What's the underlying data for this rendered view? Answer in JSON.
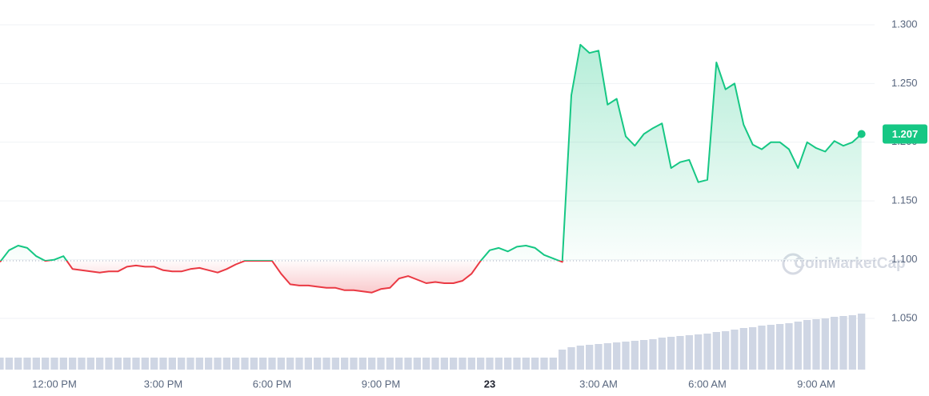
{
  "chart_data": {
    "type": "line",
    "x": [
      10.5,
      10.75,
      11,
      11.25,
      11.5,
      11.75,
      12,
      12.25,
      12.5,
      12.75,
      13,
      13.25,
      13.5,
      13.75,
      14,
      14.25,
      14.5,
      14.75,
      15,
      15.25,
      15.5,
      15.75,
      16,
      16.25,
      16.5,
      16.75,
      17,
      17.25,
      17.5,
      17.75,
      18,
      18.25,
      18.5,
      18.75,
      19,
      19.25,
      19.5,
      19.75,
      20,
      20.25,
      20.5,
      20.75,
      21,
      21.25,
      21.5,
      21.75,
      22,
      22.25,
      22.5,
      22.75,
      23,
      23.25,
      23.5,
      23.75,
      24,
      24.25,
      24.5,
      24.75,
      25,
      25.25,
      25.5,
      25.75,
      26,
      26.25,
      26.5,
      26.75,
      27,
      27.25,
      27.5,
      27.75,
      28,
      28.25,
      28.5,
      28.75,
      29,
      29.25,
      29.5,
      29.75,
      30,
      30.25,
      30.5,
      30.75,
      31,
      31.25,
      31.5,
      31.75,
      32,
      32.25,
      32.5,
      32.75,
      33,
      33.25,
      33.5,
      33.75,
      34,
      34.25
    ],
    "values": [
      1.098,
      1.108,
      1.112,
      1.11,
      1.103,
      1.099,
      1.1,
      1.103,
      1.092,
      1.091,
      1.09,
      1.089,
      1.09,
      1.09,
      1.094,
      1.095,
      1.094,
      1.094,
      1.091,
      1.09,
      1.09,
      1.092,
      1.093,
      1.091,
      1.089,
      1.092,
      1.096,
      1.099,
      1.099,
      1.099,
      1.099,
      1.088,
      1.079,
      1.078,
      1.078,
      1.077,
      1.076,
      1.076,
      1.074,
      1.074,
      1.073,
      1.072,
      1.075,
      1.076,
      1.084,
      1.086,
      1.083,
      1.08,
      1.081,
      1.08,
      1.08,
      1.082,
      1.088,
      1.099,
      1.108,
      1.11,
      1.107,
      1.111,
      1.112,
      1.11,
      1.104,
      1.101,
      1.098,
      1.24,
      1.283,
      1.276,
      1.278,
      1.232,
      1.237,
      1.205,
      1.197,
      1.207,
      1.212,
      1.216,
      1.178,
      1.183,
      1.185,
      1.166,
      1.168,
      1.268,
      1.245,
      1.25,
      1.215,
      1.198,
      1.194,
      1.2,
      1.2,
      1.194,
      1.178,
      1.2,
      1.195,
      1.192,
      1.201,
      1.197,
      1.2,
      1.207
    ],
    "volume": [
      15,
      15,
      15,
      15,
      15,
      15,
      15,
      15,
      15,
      15,
      15,
      15,
      15,
      15,
      15,
      15,
      15,
      15,
      15,
      15,
      15,
      15,
      15,
      15,
      15,
      15,
      15,
      15,
      15,
      15,
      15,
      15,
      15,
      15,
      15,
      15,
      15,
      15,
      15,
      15,
      15,
      15,
      15,
      15,
      15,
      15,
      15,
      15,
      15,
      15,
      15,
      15,
      15,
      15,
      15,
      15,
      15,
      15,
      15,
      15,
      15,
      15,
      25,
      28,
      30,
      31,
      32,
      33,
      34,
      35,
      36,
      37,
      38,
      40,
      41,
      42,
      43,
      44,
      45,
      47,
      48,
      50,
      52,
      53,
      55,
      56,
      57,
      58,
      60,
      62,
      63,
      64,
      66,
      67,
      68,
      70
    ],
    "baseline": 1.099,
    "up_color": "#16c784",
    "down_color": "#ea3943",
    "xlim": [
      10.5,
      34.39
    ],
    "xticks": [
      {
        "value": 12,
        "label": "12:00 PM"
      },
      {
        "value": 15,
        "label": "3:00 PM"
      },
      {
        "value": 18,
        "label": "6:00 PM"
      },
      {
        "value": 21,
        "label": "9:00 PM"
      },
      {
        "value": 24,
        "label": "23"
      },
      {
        "value": 27,
        "label": "3:00 AM"
      },
      {
        "value": 30,
        "label": "6:00 AM"
      },
      {
        "value": 33,
        "label": "9:00 AM"
      }
    ],
    "ylim": [
      1.0064,
      1.3211
    ],
    "yticks": [
      {
        "value": 1.05,
        "label": "1.050"
      },
      {
        "value": 1.1,
        "label": "1.100"
      },
      {
        "value": 1.15,
        "label": "1.150"
      },
      {
        "value": 1.2,
        "label": "1.200"
      },
      {
        "value": 1.25,
        "label": "1.250"
      },
      {
        "value": 1.3,
        "label": "1.300"
      }
    ],
    "grid": true,
    "current_price": {
      "value": 1.207,
      "label": "1.207"
    },
    "watermark": "CoinMarketCap"
  }
}
